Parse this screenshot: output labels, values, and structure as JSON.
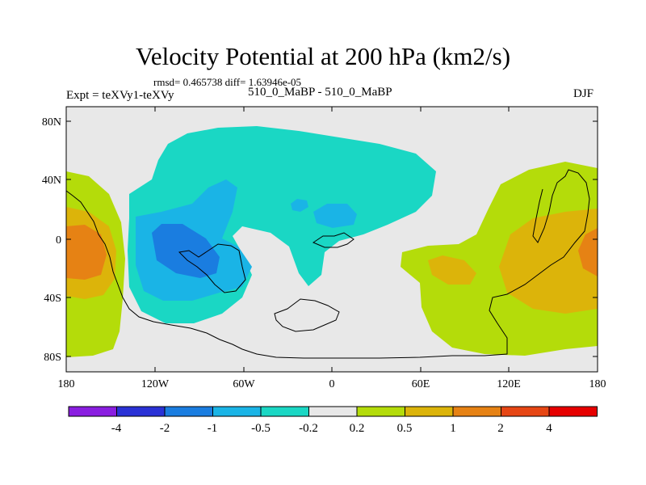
{
  "title": "Velocity Potential at 200 hPa (km2/s)",
  "stats": "rmsd= 0.465738  diff= 1.63946e-05",
  "left_label": "Expt = teXVy1-teXVy",
  "center_label": "510_0_MaBP - 510_0_MaBP",
  "right_label": "DJF",
  "lat_ticks": [
    "80N",
    "40N",
    "0",
    "40S",
    "80S"
  ],
  "lon_ticks": [
    "180",
    "120W",
    "60W",
    "0",
    "60E",
    "120E",
    "180"
  ],
  "colorbar": {
    "labels": [
      "-4",
      "-2",
      "-1",
      "-0.5",
      "-0.2",
      "0.2",
      "0.5",
      "1",
      "2",
      "4"
    ],
    "colors": [
      "#8a1ee0",
      "#2a32d6",
      "#1a7de0",
      "#1ab4e6",
      "#1ad7c4",
      "#e8e8e8",
      "#b4dc0a",
      "#dcb40a",
      "#e68214",
      "#e64614",
      "#e60000"
    ]
  },
  "palette": {
    "ocean_bg": "#e8e8e8",
    "teal": "#1ad7c4",
    "cyan": "#1ab4e6",
    "blue": "#1a7de0",
    "lime": "#b4dc0a",
    "gold": "#dcb40a",
    "orange": "#e68214"
  }
}
